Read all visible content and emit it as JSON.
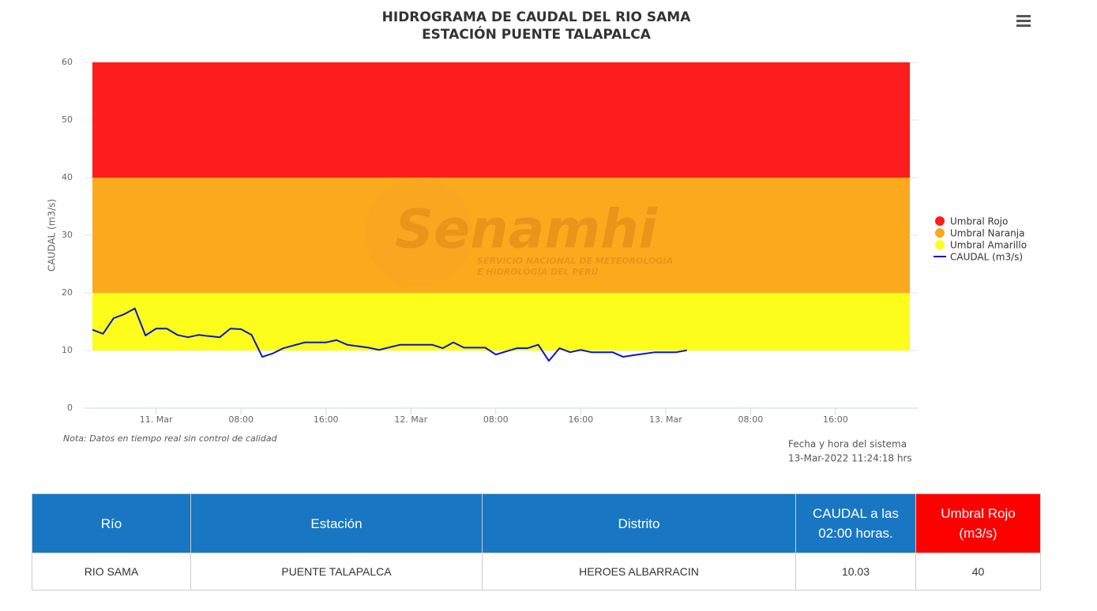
{
  "chart_data": {
    "type": "line",
    "title": "HIDROGRAMA DE CAUDAL DEL RIO SAMA",
    "subtitle": "ESTACIÓN PUENTE TALAPALCA",
    "y_label": "CAUDAL (m3/s)",
    "ylim": [
      0,
      60
    ],
    "yticks": [
      0,
      10,
      20,
      30,
      40,
      50,
      60
    ],
    "grid": true,
    "xlim": [
      -6,
      71
    ],
    "xticks": [
      {
        "value": 0,
        "label": "11. Mar"
      },
      {
        "value": 8,
        "label": "08:00"
      },
      {
        "value": 16,
        "label": "16:00"
      },
      {
        "value": 24,
        "label": "12. Mar"
      },
      {
        "value": 32,
        "label": "08:00"
      },
      {
        "value": 40,
        "label": "16:00"
      },
      {
        "value": 48,
        "label": "13. Mar"
      },
      {
        "value": 56,
        "label": "08:00"
      },
      {
        "value": 64,
        "label": "16:00"
      }
    ],
    "bands": [
      {
        "name": "Umbral Rojo",
        "color": "#ff1c1c",
        "from": 40,
        "to": 60
      },
      {
        "name": "Umbral Naranja",
        "color": "#fda91e",
        "from": 20,
        "to": 40
      },
      {
        "name": "Umbral Amarillo",
        "color": "#fdfd1c",
        "from": 10,
        "to": 20
      }
    ],
    "x": [
      -6,
      -5,
      -4,
      -3,
      -2,
      -1,
      0,
      1,
      2,
      3,
      4,
      6,
      7,
      8,
      9,
      10,
      11,
      12,
      14,
      16,
      17,
      18,
      20,
      21,
      23,
      26,
      27,
      28,
      29,
      31,
      32,
      34,
      35,
      36,
      37,
      38,
      39,
      40,
      41,
      43,
      44,
      45,
      47,
      49,
      50
    ],
    "series": [
      {
        "name": "CAUDAL (m3/s)",
        "color": "#0a16c4",
        "values": [
          13.6,
          12.9,
          15.6,
          16.3,
          17.3,
          12.6,
          13.8,
          13.8,
          12.7,
          12.3,
          12.7,
          12.3,
          13.8,
          13.7,
          12.7,
          8.9,
          9.5,
          10.4,
          11.4,
          11.4,
          11.8,
          11.0,
          10.5,
          10.1,
          11.0,
          11.0,
          10.4,
          11.4,
          10.5,
          10.5,
          9.3,
          10.4,
          10.4,
          11.0,
          8.2,
          10.4,
          9.7,
          10.1,
          9.7,
          9.7,
          8.9,
          9.2,
          9.7,
          9.7,
          10.03
        ]
      }
    ],
    "legend": "right",
    "note": "Nota: Datos en tiempo real sin control de calidad",
    "system_time_label": "Fecha y hora del sistema",
    "system_time": "13-Mar-2022 11:24:18 hrs",
    "watermark": {
      "name": "Senamhi",
      "line1": "SERVICIO NACIONAL DE METEOROLOGÍA",
      "line2": "E HIDROLOGÍA DEL PERÚ"
    }
  },
  "table": {
    "headers": [
      "Río",
      "Estación",
      "Distrito",
      "CAUDAL a las 02:00 horas.",
      "Umbral Rojo (m3/s)"
    ],
    "rows": [
      [
        "RIO SAMA",
        "PUENTE TALAPALCA",
        "HEROES ALBARRACIN",
        "10.03",
        "40"
      ]
    ]
  }
}
